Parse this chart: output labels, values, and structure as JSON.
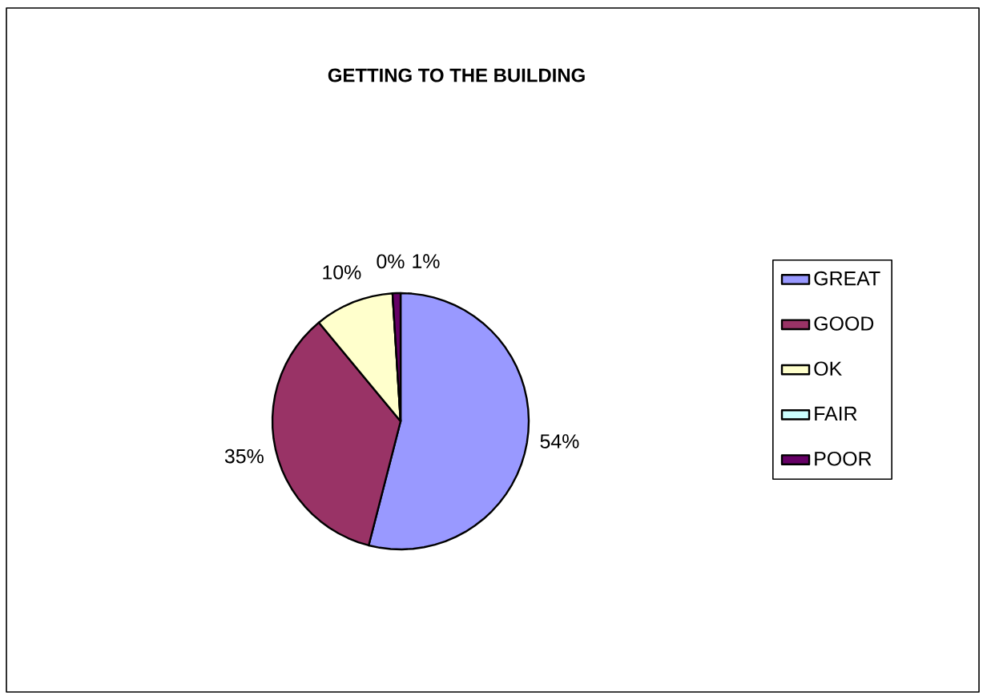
{
  "chart_data": {
    "type": "pie",
    "title": "GETTING TO THE BUILDING",
    "categories": [
      "GREAT",
      "GOOD",
      "OK",
      "FAIR",
      "POOR"
    ],
    "values": [
      54,
      35,
      10,
      0,
      1
    ],
    "value_labels": [
      "54%",
      "35%",
      "10%",
      "0%",
      "1%"
    ],
    "colors": [
      "#9999ff",
      "#993366",
      "#ffffcc",
      "#ccffff",
      "#660066"
    ],
    "legend": "right"
  }
}
